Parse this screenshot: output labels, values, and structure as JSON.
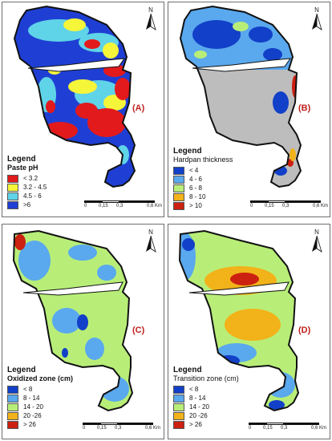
{
  "colors": {
    "ph_lt_3_2": "#e31a1c",
    "ph_3_2_4_5": "#f5f53a",
    "ph_4_5_6": "#5fd3e8",
    "ph_gt_6": "#1f3fd4",
    "c1": "#1240c8",
    "c2": "#5aa8ee",
    "c3": "#b8ee78",
    "c4": "#f2b21a",
    "c5": "#cc2010",
    "hardpan_mask": "#bdbdbd"
  },
  "panels": [
    {
      "id": "A",
      "letter": "(A)",
      "legend_title": "Legend",
      "legend_subtitle": "Paste pH",
      "items": [
        {
          "label": "< 3.2",
          "color": "#e31a1c"
        },
        {
          "label": "3.2 - 4.5",
          "color": "#f5f53a"
        },
        {
          "label": "4.5 - 6",
          "color": "#5fd3e8"
        },
        {
          "label": ">6",
          "color": "#1f3fd4"
        }
      ],
      "north": "N",
      "scale": [
        "0",
        "0,15",
        "0,3",
        "0,6 Km"
      ]
    },
    {
      "id": "B",
      "letter": "(B)",
      "legend_title": "Legend",
      "legend_subtitle": "Hardpan thickness",
      "items": [
        {
          "label": "< 4",
          "color": "#1240c8"
        },
        {
          "label": "4 - 6",
          "color": "#5aa8ee"
        },
        {
          "label": "6 - 8",
          "color": "#b8ee78"
        },
        {
          "label": "8 - 10",
          "color": "#f2b21a"
        },
        {
          "label": "> 10",
          "color": "#cc2010"
        }
      ],
      "north": "N",
      "scale": [
        "0",
        "0,15",
        "0,3",
        "0,6 Km"
      ]
    },
    {
      "id": "C",
      "letter": "(C)",
      "legend_title": "Legend",
      "legend_subtitle": "Oxidized zone (cm)",
      "items": [
        {
          "label": "< 8",
          "color": "#1240c8"
        },
        {
          "label": "8 - 14",
          "color": "#5aa8ee"
        },
        {
          "label": "14 - 20",
          "color": "#b8ee78"
        },
        {
          "label": "20 -26",
          "color": "#f2b21a"
        },
        {
          "label": "> 26",
          "color": "#cc2010"
        }
      ],
      "north": "N",
      "scale": [
        "0",
        "0,15",
        "0,3",
        "0,6 Km"
      ]
    },
    {
      "id": "D",
      "letter": "(D)",
      "legend_title": "Legend",
      "legend_subtitle": "Transition zone (cm)",
      "items": [
        {
          "label": "< 8",
          "color": "#1240c8"
        },
        {
          "label": "8 - 14",
          "color": "#5aa8ee"
        },
        {
          "label": "14 - 20",
          "color": "#b8ee78"
        },
        {
          "label": "20 -26",
          "color": "#f2b21a"
        },
        {
          "label": "> 26",
          "color": "#cc2010"
        }
      ],
      "north": "N",
      "scale": [
        "0",
        "0,15",
        "0,3",
        "0,6 Km"
      ]
    }
  ]
}
